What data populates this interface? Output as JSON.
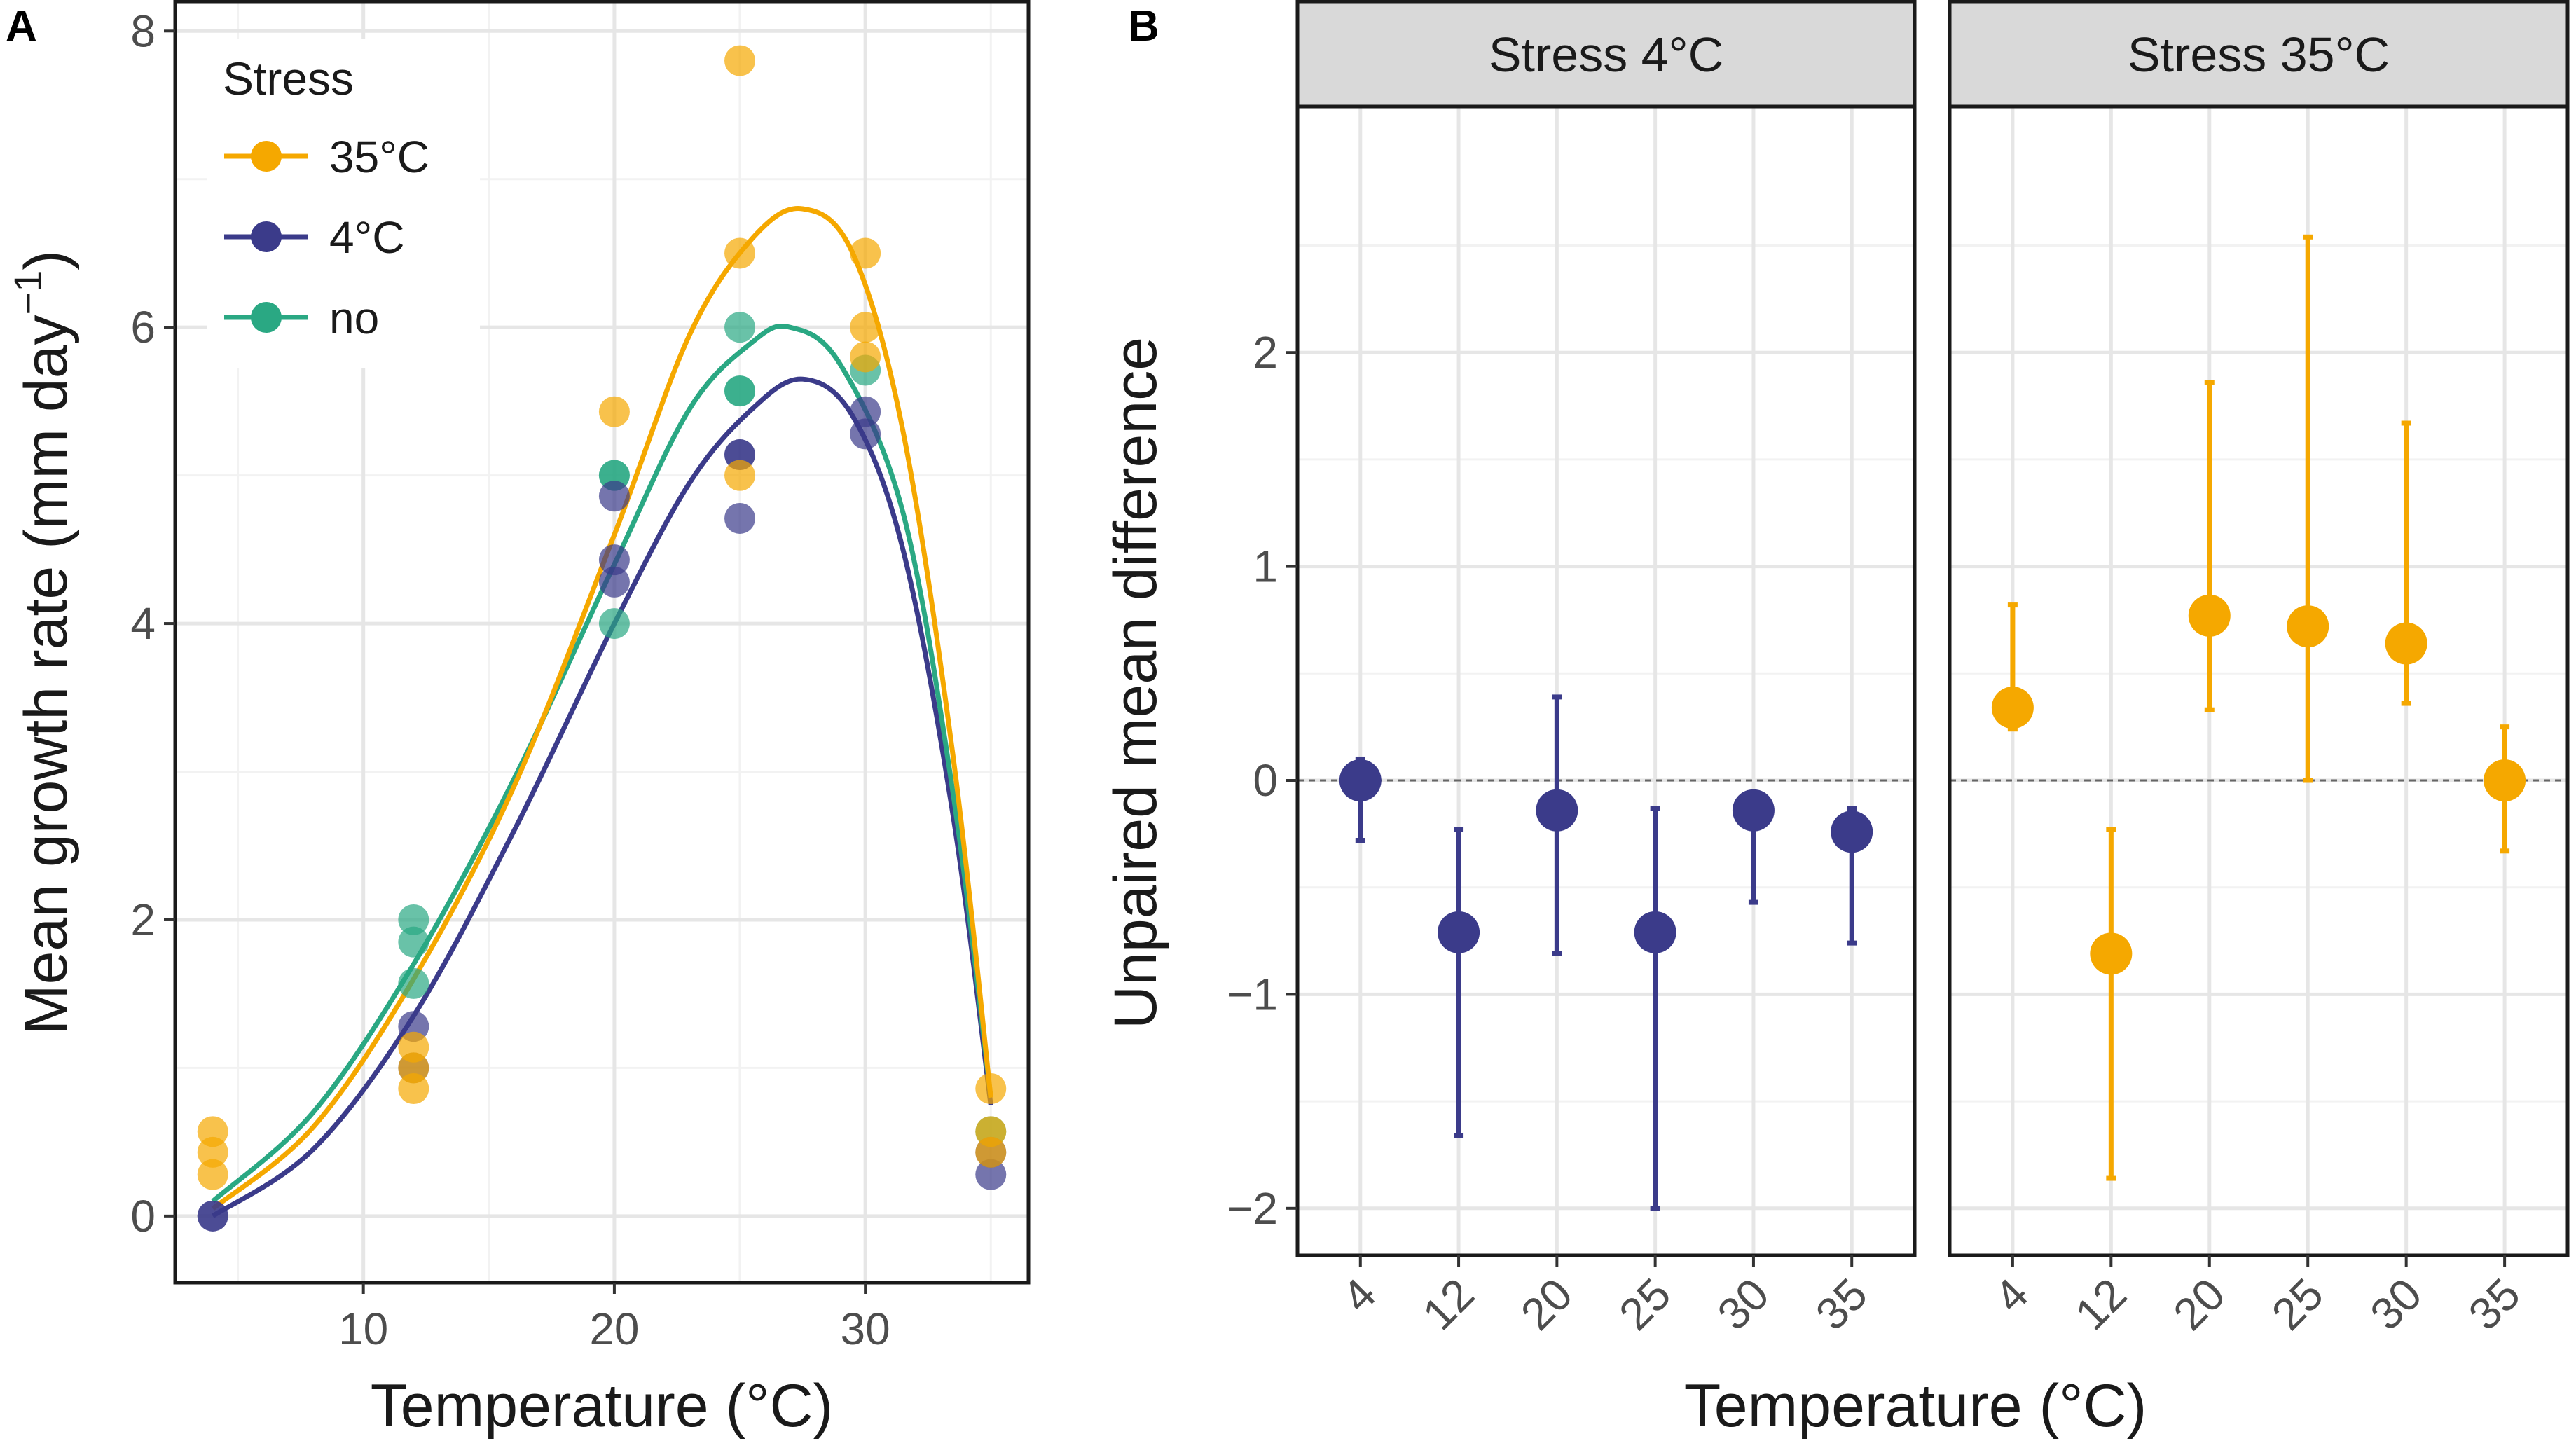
{
  "chart_data": [
    {
      "panel_tag": "A",
      "type": "scatter",
      "xlabel": "Temperature (°C)",
      "ylabel": "Mean growth rate (mm day",
      "ylabel_sup": "−1",
      "ylabel_close": ")",
      "xlim": [
        2.5,
        36.5
      ],
      "ylim": [
        -0.45,
        8.2
      ],
      "xticks": [
        10,
        20,
        30
      ],
      "xtick_labels": [
        "10",
        "20",
        "30"
      ],
      "yticks": [
        0,
        2,
        4,
        6,
        8
      ],
      "ytick_labels": [
        "0",
        "2",
        "4",
        "6",
        "8"
      ],
      "legend": {
        "title": "Stress",
        "entries": [
          {
            "label": "35°C",
            "color": "#F5A800"
          },
          {
            "label": "4°C",
            "color": "#3B3B8A"
          },
          {
            "label": "no",
            "color": "#2AA883"
          }
        ]
      },
      "series": [
        {
          "name": "35°C",
          "color": "#F5A800",
          "points": [
            [
              4,
              0.57
            ],
            [
              4,
              0.43
            ],
            [
              4,
              0.28
            ],
            [
              12,
              1.14
            ],
            [
              12,
              1.0
            ],
            [
              12,
              0.86
            ],
            [
              20,
              5.43
            ],
            [
              25,
              7.8
            ],
            [
              25,
              6.5
            ],
            [
              25,
              5.0
            ],
            [
              30,
              6.5
            ],
            [
              30,
              6.0
            ],
            [
              30,
              5.8
            ],
            [
              35,
              0.86
            ],
            [
              35,
              0.57
            ],
            [
              35,
              0.43
            ]
          ],
          "curve": [
            [
              4,
              0.05
            ],
            [
              8,
              0.6
            ],
            [
              12,
              1.6
            ],
            [
              16,
              2.9
            ],
            [
              20,
              4.6
            ],
            [
              23,
              5.95
            ],
            [
              25.5,
              6.6
            ],
            [
              27.5,
              6.8
            ],
            [
              29.5,
              6.5
            ],
            [
              31.5,
              5.3
            ],
            [
              33.5,
              3.1
            ],
            [
              35,
              0.8
            ]
          ]
        },
        {
          "name": "4°C",
          "color": "#3B3B8A",
          "points": [
            [
              4,
              0.0
            ],
            [
              4,
              0.0
            ],
            [
              12,
              1.28
            ],
            [
              12,
              1.0
            ],
            [
              20,
              4.86
            ],
            [
              20,
              4.43
            ],
            [
              20,
              4.28
            ],
            [
              25,
              5.14
            ],
            [
              25,
              5.14
            ],
            [
              25,
              4.71
            ],
            [
              30,
              5.43
            ],
            [
              30,
              5.28
            ],
            [
              35,
              0.43
            ],
            [
              35,
              0.28
            ]
          ],
          "curve": [
            [
              4,
              0.0
            ],
            [
              8,
              0.45
            ],
            [
              12,
              1.35
            ],
            [
              16,
              2.6
            ],
            [
              20,
              4.0
            ],
            [
              23,
              4.95
            ],
            [
              25.5,
              5.45
            ],
            [
              27.5,
              5.65
            ],
            [
              29.5,
              5.4
            ],
            [
              31.5,
              4.5
            ],
            [
              33.5,
              2.7
            ],
            [
              35,
              0.75
            ]
          ]
        },
        {
          "name": "no",
          "color": "#2AA883",
          "points": [
            [
              12,
              2.0
            ],
            [
              12,
              1.85
            ],
            [
              12,
              1.57
            ],
            [
              20,
              5.0
            ],
            [
              20,
              5.0
            ],
            [
              20,
              4.0
            ],
            [
              25,
              6.0
            ],
            [
              25,
              5.57
            ],
            [
              25,
              5.57
            ],
            [
              30,
              5.71
            ],
            [
              35,
              0.57
            ]
          ],
          "curve": [
            [
              4,
              0.1
            ],
            [
              8,
              0.7
            ],
            [
              12,
              1.7
            ],
            [
              16,
              2.95
            ],
            [
              20,
              4.4
            ],
            [
              23,
              5.45
            ],
            [
              25.5,
              5.9
            ],
            [
              27,
              6.0
            ],
            [
              29,
              5.75
            ],
            [
              31.5,
              4.75
            ],
            [
              33.5,
              2.85
            ],
            [
              35,
              0.8
            ]
          ]
        }
      ]
    },
    {
      "panel_tag": "B",
      "type": "scatter",
      "ylabel": "Unpaired mean difference",
      "xlabel": "Temperature (°C)",
      "ylim": [
        -2.22,
        3.15
      ],
      "yticks": [
        -2,
        -1,
        0,
        1,
        2
      ],
      "ytick_labels": [
        "−2",
        "−1",
        "0",
        "1",
        "2"
      ],
      "categories": [
        "4",
        "12",
        "20",
        "25",
        "30",
        "35"
      ],
      "facets": [
        {
          "strip": "Stress 4°C",
          "color": "#3B3B8A",
          "estimates": [
            0.0,
            -0.71,
            -0.14,
            -0.71,
            -0.14,
            -0.24
          ],
          "ci_low": [
            -0.28,
            -1.66,
            -0.81,
            -2.0,
            -0.57,
            -0.76
          ],
          "ci_high": [
            0.1,
            -0.23,
            0.39,
            -0.13,
            -0.1,
            -0.13
          ]
        },
        {
          "strip": "Stress 35°C",
          "color": "#F5A800",
          "estimates": [
            0.34,
            -0.81,
            0.77,
            0.72,
            0.64,
            0.0
          ],
          "ci_low": [
            0.24,
            -1.86,
            0.33,
            0.0,
            0.36,
            -0.33
          ],
          "ci_high": [
            0.82,
            -0.23,
            1.86,
            2.54,
            1.67,
            0.25
          ]
        }
      ]
    }
  ]
}
